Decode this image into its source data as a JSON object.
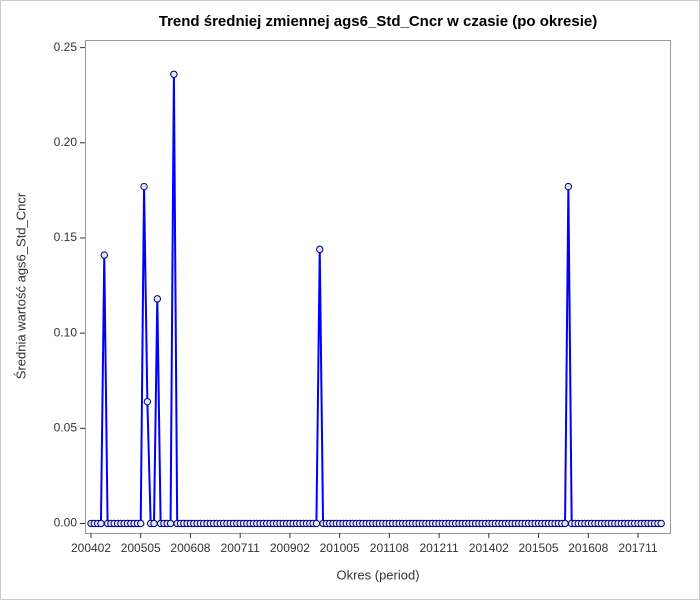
{
  "chart_data": {
    "type": "line",
    "title": "Trend średniej zmiennej ags6_Std_Cncr w czasie (po okresie)",
    "x_label": "Okres (period)",
    "y_label": "Średnia wartość ags6_Std_Cncr",
    "categories": [
      "200402",
      "200403",
      "200404",
      "200405",
      "200406",
      "200407",
      "200408",
      "200409",
      "200410",
      "200411",
      "200412",
      "200501",
      "200502",
      "200503",
      "200504",
      "200505",
      "200506",
      "200507",
      "200508",
      "200509",
      "200510",
      "200511",
      "200512",
      "200601",
      "200602",
      "200603",
      "200604",
      "200605",
      "200606",
      "200607",
      "200608",
      "200609",
      "200610",
      "200611",
      "200612",
      "200701",
      "200702",
      "200703",
      "200704",
      "200705",
      "200706",
      "200707",
      "200708",
      "200709",
      "200710",
      "200711",
      "200712",
      "200801",
      "200802",
      "200803",
      "200804",
      "200805",
      "200806",
      "200807",
      "200808",
      "200809",
      "200810",
      "200811",
      "200812",
      "200901",
      "200902",
      "200903",
      "200904",
      "200905",
      "200906",
      "200907",
      "200908",
      "200909",
      "200910",
      "200911",
      "200912",
      "201001",
      "201002",
      "201003",
      "201004",
      "201005",
      "201006",
      "201007",
      "201008",
      "201009",
      "201010",
      "201011",
      "201012",
      "201101",
      "201102",
      "201103",
      "201104",
      "201105",
      "201106",
      "201107",
      "201108",
      "201109",
      "201110",
      "201111",
      "201112",
      "201201",
      "201202",
      "201203",
      "201204",
      "201205",
      "201206",
      "201207",
      "201208",
      "201209",
      "201210",
      "201211",
      "201212",
      "201301",
      "201302",
      "201303",
      "201304",
      "201305",
      "201306",
      "201307",
      "201308",
      "201309",
      "201310",
      "201311",
      "201312",
      "201401",
      "201402",
      "201403",
      "201404",
      "201405",
      "201406",
      "201407",
      "201408",
      "201409",
      "201410",
      "201411",
      "201412",
      "201501",
      "201502",
      "201503",
      "201504",
      "201505",
      "201506",
      "201507",
      "201508",
      "201509",
      "201510",
      "201511",
      "201512",
      "201601",
      "201602",
      "201603",
      "201604",
      "201605",
      "201606",
      "201607",
      "201608",
      "201609",
      "201610",
      "201611",
      "201612",
      "201701",
      "201702",
      "201703",
      "201704",
      "201705",
      "201706",
      "201707",
      "201708",
      "201709",
      "201710",
      "201711",
      "201712",
      "201801",
      "201802",
      "201803",
      "201804",
      "201805",
      "201806"
    ],
    "series": [
      {
        "name": "ags6_Std_Cncr",
        "color": "#0000ff",
        "values": [
          0,
          0,
          0,
          0,
          0.141,
          0,
          0,
          0,
          0,
          0,
          0,
          0,
          0,
          0,
          0,
          0,
          0.177,
          0.064,
          0,
          0,
          0.118,
          0,
          0,
          0,
          0,
          0.236,
          0,
          0,
          0,
          0,
          0,
          0,
          0,
          0,
          0,
          0,
          0,
          0,
          0,
          0,
          0,
          0,
          0,
          0,
          0,
          0,
          0,
          0,
          0,
          0,
          0,
          0,
          0,
          0,
          0,
          0,
          0,
          0,
          0,
          0,
          0,
          0,
          0,
          0,
          0,
          0,
          0,
          0,
          0,
          0.144,
          0,
          0,
          0,
          0,
          0,
          0,
          0,
          0,
          0,
          0,
          0,
          0,
          0,
          0,
          0,
          0,
          0,
          0,
          0,
          0,
          0,
          0,
          0,
          0,
          0,
          0,
          0,
          0,
          0,
          0,
          0,
          0,
          0,
          0,
          0,
          0,
          0,
          0,
          0,
          0,
          0,
          0,
          0,
          0,
          0,
          0,
          0,
          0,
          0,
          0,
          0,
          0,
          0,
          0,
          0,
          0,
          0,
          0,
          0,
          0,
          0,
          0,
          0,
          0,
          0,
          0,
          0,
          0,
          0,
          0,
          0,
          0,
          0,
          0,
          0.177,
          0,
          0,
          0,
          0,
          0,
          0,
          0,
          0,
          0,
          0,
          0,
          0,
          0,
          0,
          0,
          0,
          0,
          0,
          0,
          0,
          0,
          0,
          0,
          0,
          0,
          0,
          0,
          0
        ]
      }
    ],
    "ylim": [
      -0.005,
      0.254
    ],
    "yticks": [
      {
        "value": 0,
        "label": "0.00"
      },
      {
        "value": 0.05,
        "label": "0.05"
      },
      {
        "value": 0.1,
        "label": "0.10"
      },
      {
        "value": 0.15,
        "label": "0.15"
      },
      {
        "value": 0.2,
        "label": "0.20"
      },
      {
        "value": 0.25,
        "label": "0.25"
      }
    ],
    "grid": false
  }
}
